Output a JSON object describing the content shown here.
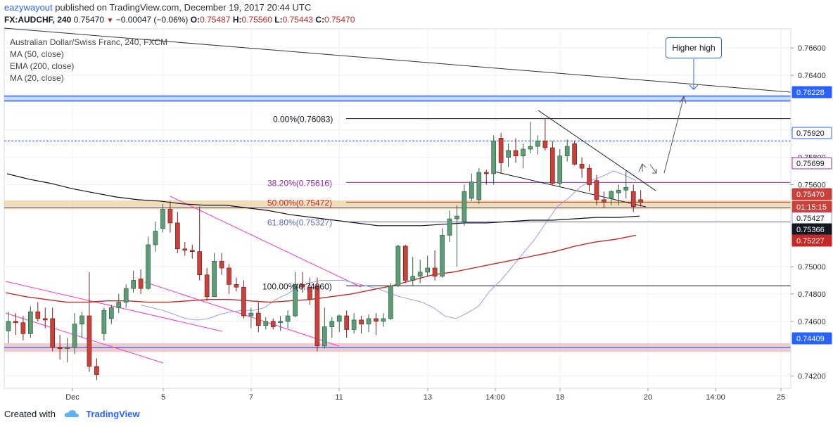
{
  "header": {
    "user": "eazywayout",
    "published_text": "published on TradingView.com, December 19, 2017 20:44 UTC",
    "symbol": "FX:AUDCHF, 240",
    "last": "0.75470",
    "change": "−0.00047 (−0.06%)",
    "ohlc": [
      {
        "label": "O:",
        "value": "0.75487"
      },
      {
        "label": "H:",
        "value": "0.75560"
      },
      {
        "label": "L:",
        "value": "0.75443"
      },
      {
        "label": "C:",
        "value": "0.75470"
      }
    ]
  },
  "legend": {
    "title": "Australian Dollar/Swiss Franc, 240, FXCM",
    "lines": [
      "MA (50, close)",
      "EMA (200, close)",
      "MA (20, close)"
    ]
  },
  "annotation": {
    "text": "Higher high"
  },
  "footer": {
    "created_with": "Created with",
    "brand": "TradingView"
  },
  "colors": {
    "up": "#5e9c76",
    "down": "#c9413b",
    "ma50": "#9b9bf0",
    "ema200": "#c62828",
    "ma20": "#111111",
    "fib": "#9c27b0",
    "fib618": "#5c6bc0",
    "resistance": "#2962ff",
    "support_zone": "#e6a8a8",
    "fib_zone": "#e8c27a",
    "channel": "#ff36c9"
  },
  "chart_data": {
    "type": "candlestick",
    "ylim": [
      0.7411,
      0.7674
    ],
    "x_tick_labels": [
      "Dec",
      "5",
      "7",
      "11",
      "13",
      "14:00",
      "18",
      "20",
      "14:00",
      "25"
    ],
    "y_tick_labels": [
      "0.76600",
      "0.76400",
      "0.76000",
      "0.75800",
      "0.75600",
      "0.75000",
      "0.74800",
      "0.74600",
      "0.74200"
    ],
    "price_badges": [
      {
        "text": "0.76228",
        "value": 0.76228,
        "bg": "#2962ff",
        "fg": "#ffffff"
      },
      {
        "text": "0.75920",
        "value": 0.7592,
        "bg": "#ffffff",
        "fg": "#131722",
        "border": "#2962ff"
      },
      {
        "text": "0.75699",
        "value": 0.75699,
        "bg": "#ffffff",
        "fg": "#131722",
        "border": "#9c27b0"
      },
      {
        "text": "0.75470",
        "value": 0.7547,
        "bg": "#c9413b",
        "fg": "#ffffff"
      },
      {
        "text": "01:15:15",
        "value": 0.75323,
        "bg": "#c9413b",
        "fg": "#ffffff"
      },
      {
        "text": "0.75427",
        "value": 0.75427,
        "bg": "#ffffff",
        "fg": "#131722",
        "border": "#9b9bf0"
      },
      {
        "text": "0.75366",
        "value": 0.75366,
        "bg": "#131722",
        "fg": "#ffffff"
      },
      {
        "text": "0.75227",
        "value": 0.75227,
        "bg": "#c62828",
        "fg": "#ffffff"
      },
      {
        "text": "0.74409",
        "value": 0.74409,
        "bg": "#2962ff",
        "fg": "#ffffff"
      }
    ],
    "fib_levels": [
      {
        "text": "0.00%(0.76083)",
        "value": 0.76083
      },
      {
        "text": "38.20%(0.75616)",
        "value": 0.75616
      },
      {
        "text": "50.00%(0.75472)",
        "value": 0.75472
      },
      {
        "text": "61.80%(0.75327)",
        "value": 0.75327
      },
      {
        "text": "100.00%(0.74860)",
        "value": 0.7486
      }
    ],
    "resistance_level": 0.76228,
    "dotted_level": 0.7592,
    "support_zone": [
      0.74376,
      0.7444
    ],
    "fib_zone": [
      0.7542,
      0.75485
    ],
    "candles": [
      {
        "o": 0.7453,
        "h": 0.7467,
        "l": 0.7444,
        "c": 0.746
      },
      {
        "o": 0.746,
        "h": 0.7466,
        "l": 0.745,
        "c": 0.7459
      },
      {
        "o": 0.7459,
        "h": 0.7464,
        "l": 0.7446,
        "c": 0.7451
      },
      {
        "o": 0.7451,
        "h": 0.7471,
        "l": 0.7448,
        "c": 0.7467
      },
      {
        "o": 0.7467,
        "h": 0.7474,
        "l": 0.746,
        "c": 0.7462
      },
      {
        "o": 0.7462,
        "h": 0.747,
        "l": 0.7455,
        "c": 0.7461
      },
      {
        "o": 0.7462,
        "h": 0.747,
        "l": 0.7438,
        "c": 0.7441
      },
      {
        "o": 0.7441,
        "h": 0.745,
        "l": 0.7432,
        "c": 0.744
      },
      {
        "o": 0.744,
        "h": 0.7448,
        "l": 0.743,
        "c": 0.7441
      },
      {
        "o": 0.7441,
        "h": 0.7466,
        "l": 0.7436,
        "c": 0.7458
      },
      {
        "o": 0.7458,
        "h": 0.7467,
        "l": 0.7448,
        "c": 0.7464
      },
      {
        "o": 0.7464,
        "h": 0.7496,
        "l": 0.7423,
        "c": 0.7427
      },
      {
        "o": 0.7427,
        "h": 0.7433,
        "l": 0.7417,
        "c": 0.7421
      },
      {
        "o": 0.7451,
        "h": 0.747,
        "l": 0.7446,
        "c": 0.7468
      },
      {
        "o": 0.7462,
        "h": 0.7472,
        "l": 0.7458,
        "c": 0.747
      },
      {
        "o": 0.747,
        "h": 0.748,
        "l": 0.7466,
        "c": 0.7474
      },
      {
        "o": 0.7474,
        "h": 0.7487,
        "l": 0.747,
        "c": 0.7484
      },
      {
        "o": 0.7484,
        "h": 0.7497,
        "l": 0.7481,
        "c": 0.749
      },
      {
        "o": 0.7491,
        "h": 0.7498,
        "l": 0.748,
        "c": 0.7484
      },
      {
        "o": 0.7484,
        "h": 0.7522,
        "l": 0.7483,
        "c": 0.7516
      },
      {
        "o": 0.7516,
        "h": 0.7533,
        "l": 0.7511,
        "c": 0.7526
      },
      {
        "o": 0.7528,
        "h": 0.7546,
        "l": 0.7525,
        "c": 0.7542
      },
      {
        "o": 0.7542,
        "h": 0.7548,
        "l": 0.7525,
        "c": 0.7532
      },
      {
        "o": 0.7532,
        "h": 0.754,
        "l": 0.751,
        "c": 0.7513
      },
      {
        "o": 0.7513,
        "h": 0.7518,
        "l": 0.7508,
        "c": 0.7512
      },
      {
        "o": 0.7512,
        "h": 0.7516,
        "l": 0.7506,
        "c": 0.7511
      },
      {
        "o": 0.7511,
        "h": 0.7544,
        "l": 0.749,
        "c": 0.7494
      },
      {
        "o": 0.7494,
        "h": 0.7499,
        "l": 0.7475,
        "c": 0.7478
      },
      {
        "o": 0.7478,
        "h": 0.751,
        "l": 0.7478,
        "c": 0.7504
      },
      {
        "o": 0.7504,
        "h": 0.751,
        "l": 0.7494,
        "c": 0.7499
      },
      {
        "o": 0.7499,
        "h": 0.7502,
        "l": 0.748,
        "c": 0.7487
      },
      {
        "o": 0.7487,
        "h": 0.7492,
        "l": 0.7482,
        "c": 0.7485
      },
      {
        "o": 0.7485,
        "h": 0.749,
        "l": 0.7462,
        "c": 0.7464
      },
      {
        "o": 0.7464,
        "h": 0.747,
        "l": 0.7455,
        "c": 0.7466
      },
      {
        "o": 0.7466,
        "h": 0.7474,
        "l": 0.7452,
        "c": 0.7457
      },
      {
        "o": 0.7457,
        "h": 0.7463,
        "l": 0.7454,
        "c": 0.746
      },
      {
        "o": 0.746,
        "h": 0.7462,
        "l": 0.7454,
        "c": 0.7456
      },
      {
        "o": 0.7459,
        "h": 0.7464,
        "l": 0.7453,
        "c": 0.746
      },
      {
        "o": 0.746,
        "h": 0.7468,
        "l": 0.7455,
        "c": 0.7464
      },
      {
        "o": 0.7464,
        "h": 0.7496,
        "l": 0.7463,
        "c": 0.7487
      },
      {
        "o": 0.7487,
        "h": 0.7496,
        "l": 0.7481,
        "c": 0.7485
      },
      {
        "o": 0.7485,
        "h": 0.7492,
        "l": 0.7472,
        "c": 0.7476
      },
      {
        "o": 0.7486,
        "h": 0.7492,
        "l": 0.7438,
        "c": 0.7442
      },
      {
        "o": 0.7442,
        "h": 0.747,
        "l": 0.744,
        "c": 0.7456
      },
      {
        "o": 0.7456,
        "h": 0.7463,
        "l": 0.7448,
        "c": 0.746
      },
      {
        "o": 0.746,
        "h": 0.7465,
        "l": 0.7452,
        "c": 0.7464
      },
      {
        "o": 0.7464,
        "h": 0.7468,
        "l": 0.7448,
        "c": 0.7454
      },
      {
        "o": 0.7454,
        "h": 0.7466,
        "l": 0.7451,
        "c": 0.7461
      },
      {
        "o": 0.7461,
        "h": 0.7464,
        "l": 0.7451,
        "c": 0.7458
      },
      {
        "o": 0.7458,
        "h": 0.7465,
        "l": 0.7452,
        "c": 0.7462
      },
      {
        "o": 0.7462,
        "h": 0.7466,
        "l": 0.745,
        "c": 0.746
      },
      {
        "o": 0.746,
        "h": 0.7466,
        "l": 0.7456,
        "c": 0.7462
      },
      {
        "o": 0.7462,
        "h": 0.7488,
        "l": 0.7461,
        "c": 0.7486
      },
      {
        "o": 0.7486,
        "h": 0.7516,
        "l": 0.7485,
        "c": 0.7515
      },
      {
        "o": 0.7515,
        "h": 0.7516,
        "l": 0.7488,
        "c": 0.749
      },
      {
        "o": 0.749,
        "h": 0.7507,
        "l": 0.7486,
        "c": 0.7493
      },
      {
        "o": 0.7493,
        "h": 0.7505,
        "l": 0.7488,
        "c": 0.7496
      },
      {
        "o": 0.7496,
        "h": 0.7508,
        "l": 0.7493,
        "c": 0.7499
      },
      {
        "o": 0.7499,
        "h": 0.7512,
        "l": 0.749,
        "c": 0.7493
      },
      {
        "o": 0.7493,
        "h": 0.7528,
        "l": 0.7492,
        "c": 0.7523
      },
      {
        "o": 0.7523,
        "h": 0.7541,
        "l": 0.7518,
        "c": 0.7535
      },
      {
        "o": 0.7535,
        "h": 0.7545,
        "l": 0.75,
        "c": 0.7537
      },
      {
        "o": 0.7533,
        "h": 0.756,
        "l": 0.753,
        "c": 0.7555
      },
      {
        "o": 0.755,
        "h": 0.7568,
        "l": 0.7548,
        "c": 0.7562
      },
      {
        "o": 0.7549,
        "h": 0.7572,
        "l": 0.7546,
        "c": 0.7569
      },
      {
        "o": 0.7569,
        "h": 0.7571,
        "l": 0.756,
        "c": 0.7568
      },
      {
        "o": 0.7568,
        "h": 0.7596,
        "l": 0.756,
        "c": 0.7592
      },
      {
        "o": 0.7594,
        "h": 0.7598,
        "l": 0.7568,
        "c": 0.7576
      },
      {
        "o": 0.758,
        "h": 0.759,
        "l": 0.7573,
        "c": 0.7585
      },
      {
        "o": 0.7585,
        "h": 0.7594,
        "l": 0.7576,
        "c": 0.7581
      },
      {
        "o": 0.7581,
        "h": 0.759,
        "l": 0.7572,
        "c": 0.7586
      },
      {
        "o": 0.7586,
        "h": 0.7606,
        "l": 0.7583,
        "c": 0.7588
      },
      {
        "o": 0.7588,
        "h": 0.7596,
        "l": 0.7582,
        "c": 0.7592
      },
      {
        "o": 0.7592,
        "h": 0.7608,
        "l": 0.7585,
        "c": 0.7587
      },
      {
        "o": 0.7587,
        "h": 0.7592,
        "l": 0.756,
        "c": 0.7561
      },
      {
        "o": 0.7561,
        "h": 0.7586,
        "l": 0.7558,
        "c": 0.7581
      },
      {
        "o": 0.7581,
        "h": 0.7593,
        "l": 0.7577,
        "c": 0.7588
      },
      {
        "o": 0.759,
        "h": 0.7592,
        "l": 0.7574,
        "c": 0.7575
      },
      {
        "o": 0.7575,
        "h": 0.758,
        "l": 0.7565,
        "c": 0.7572
      },
      {
        "o": 0.7572,
        "h": 0.7575,
        "l": 0.7555,
        "c": 0.756
      },
      {
        "o": 0.7563,
        "h": 0.7567,
        "l": 0.7545,
        "c": 0.7549
      },
      {
        "o": 0.7549,
        "h": 0.7555,
        "l": 0.7543,
        "c": 0.7547
      },
      {
        "o": 0.755,
        "h": 0.7556,
        "l": 0.7545,
        "c": 0.7555
      },
      {
        "o": 0.7554,
        "h": 0.756,
        "l": 0.7545,
        "c": 0.7556
      },
      {
        "o": 0.7556,
        "h": 0.757,
        "l": 0.755,
        "c": 0.7558
      },
      {
        "o": 0.7555,
        "h": 0.756,
        "l": 0.754,
        "c": 0.7544
      },
      {
        "o": 0.7549,
        "h": 0.7556,
        "l": 0.7544,
        "c": 0.7547
      }
    ],
    "ma50_series": [
      0.7472,
      0.747,
      0.7468,
      0.7465,
      0.7462,
      0.7461,
      0.7462,
      0.7465,
      0.7467,
      0.7468,
      0.7468,
      0.747,
      0.7476,
      0.748,
      0.7485,
      0.7488,
      0.749,
      0.749,
      0.749,
      0.7488,
      0.7486,
      0.7484,
      0.7481,
      0.7478,
      0.7476,
      0.7474,
      0.747,
      0.7464,
      0.7462,
      0.7466,
      0.7471,
      0.7482,
      0.749,
      0.75,
      0.751,
      0.752,
      0.7532,
      0.7544,
      0.755,
      0.7558,
      0.7563,
      0.7566,
      0.757,
      0.7567,
      0.7563
    ],
    "ema200_series": [
      0.7481,
      0.7478,
      0.7476,
      0.7474,
      0.7474,
      0.7475,
      0.7475,
      0.7474,
      0.7474,
      0.7475,
      0.7476,
      0.7476,
      0.7475,
      0.7474,
      0.7475,
      0.7476,
      0.7478,
      0.748,
      0.7483,
      0.7486,
      0.749,
      0.7494,
      0.7496,
      0.7499,
      0.7502,
      0.7505,
      0.7508,
      0.7511,
      0.7515,
      0.7518,
      0.752,
      0.7523
    ],
    "ma20_series": [
      0.7568,
      0.7564,
      0.7561,
      0.7557,
      0.7554,
      0.7551,
      0.7549,
      0.7548,
      0.7546,
      0.7545,
      0.7545,
      0.7543,
      0.7541,
      0.7538,
      0.7536,
      0.7534,
      0.7532,
      0.753,
      0.753,
      0.753,
      0.7531,
      0.7532,
      0.7532,
      0.7533,
      0.7534,
      0.7534,
      0.7535,
      0.7536,
      0.7536,
      0.7537
    ]
  }
}
